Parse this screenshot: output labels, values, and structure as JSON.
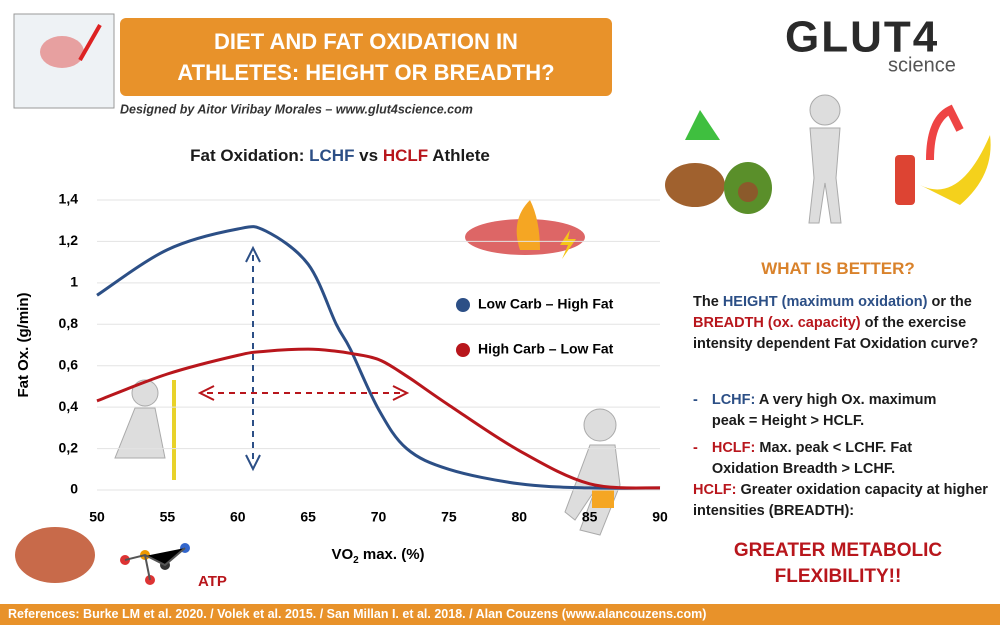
{
  "header": {
    "title_lines": [
      "DIET AND FAT OXIDATION IN",
      "ATHLETES: HEIGHT OR BREADTH?"
    ],
    "credit": "Designed by Aitor Viribay Morales – www.glut4science.com",
    "logo": "GLUT4",
    "logo_sub": "science"
  },
  "chart_data": {
    "type": "line",
    "title": [
      "Fat Oxidation: ",
      "LCHF",
      " vs ",
      "HCLF",
      " Athlete"
    ],
    "x_label": [
      "VO",
      "2",
      " max. (%)"
    ],
    "y_label": "Fat Ox. (g/min)",
    "x": [
      50,
      55,
      60,
      62,
      65,
      67,
      68,
      70,
      72,
      75,
      80,
      85,
      90
    ],
    "series": [
      {
        "name": "Low Carb – High Fat",
        "color": "#2c4f86",
        "values": [
          0.94,
          1.16,
          1.26,
          1.25,
          1.09,
          0.8,
          0.68,
          0.39,
          0.2,
          0.1,
          0.03,
          0.01,
          0.01
        ]
      },
      {
        "name": "High Carb – Low Fat",
        "color": "#b8161c",
        "values": [
          0.43,
          0.56,
          0.65,
          0.67,
          0.68,
          0.67,
          0.66,
          0.63,
          0.55,
          0.41,
          0.19,
          0.03,
          0.01
        ]
      }
    ],
    "xlim": [
      50,
      90
    ],
    "xticks": [
      50,
      55,
      60,
      65,
      70,
      75,
      80,
      85,
      90
    ],
    "ylim": [
      0,
      1.4
    ],
    "yticks": [
      0,
      {
        "value": 0.2,
        "label": "0,2"
      },
      {
        "value": 0.4,
        "label": "0,4"
      },
      {
        "value": 0.6,
        "label": "0,6"
      },
      {
        "value": 0.8,
        "label": "0,8"
      },
      1,
      {
        "value": 1.2,
        "label": "1,2"
      },
      {
        "value": 1.4,
        "label": "1,4"
      }
    ],
    "grid": true
  },
  "panel": {
    "question": "WHAT IS BETTER?",
    "paragraph": [
      "The ",
      "HEIGHT (maximum oxidation)",
      " or the ",
      "BREADTH (ox. capacity)",
      " of the exercise intensity dependent Fat Oxidation curve?"
    ],
    "bullets": [
      {
        "dash": "-",
        "label": "LCHF:",
        "text": "A very high Ox. maximum peak = Height > HCLF."
      },
      {
        "dash": "-",
        "label": "HCLF:",
        "text": "Max. peak < LCHF. Fat Oxidation Breadth > LCHF."
      }
    ],
    "conclusion_label": "HCLF:",
    "conclusion": "Greater oxidation capacity at higher intensities (BREADTH):",
    "headline": [
      "GREATER METABOLIC",
      "FLEXIBILITY!!"
    ]
  },
  "atp_label": "ATP",
  "references": "References: Burke LM et al. 2020. / Volek et al. 2015. / San Millan I. et al. 2018. / Alan Couzens (www.alancouzens.com)"
}
